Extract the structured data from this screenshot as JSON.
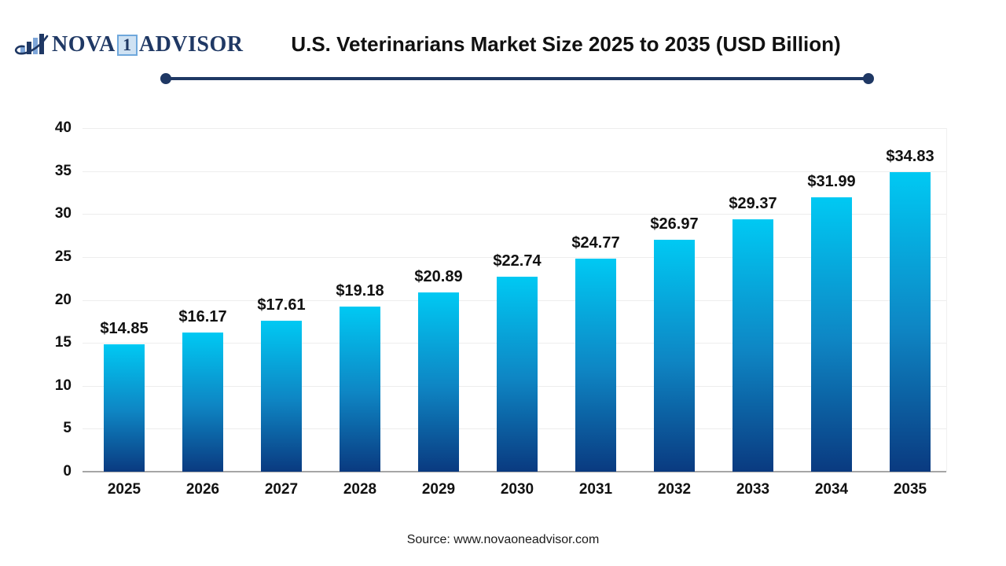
{
  "logo": {
    "icon": "bar-chart-swoosh-icon",
    "brand_prefix": "NOVA",
    "brand_badge": "1",
    "brand_suffix": "ADVISOR"
  },
  "header": {
    "title": "U.S. Veterinarians Market Size 2025 to 2035 (USD Billion)"
  },
  "footer": {
    "source": "Source: www.novaoneadvisor.com"
  },
  "colors": {
    "navy": "#1f3864",
    "grid": "#ededed",
    "axis": "#a6a6a6",
    "bar_top": "#00c9f3",
    "bar_mid": "#0e86c4",
    "bar_bottom": "#0a3a80",
    "badge_bg": "#cfe2f3",
    "badge_border": "#6fa8dc"
  },
  "chart_data": {
    "type": "bar",
    "title": "U.S. Veterinarians Market Size 2025 to 2035 (USD Billion)",
    "categories": [
      "2025",
      "2026",
      "2027",
      "2028",
      "2029",
      "2030",
      "2031",
      "2032",
      "2033",
      "2034",
      "2035"
    ],
    "values": [
      14.85,
      16.17,
      17.61,
      19.18,
      20.89,
      22.74,
      24.77,
      26.97,
      29.37,
      31.99,
      34.83
    ],
    "value_labels": [
      "$14.85",
      "$16.17",
      "$17.61",
      "$19.18",
      "$20.89",
      "$22.74",
      "$24.77",
      "$26.97",
      "$29.37",
      "$31.99",
      "$34.83"
    ],
    "xlabel": "",
    "ylabel": "",
    "ylim": [
      0,
      40
    ],
    "ytick_step": 5,
    "yticks": [
      0,
      5,
      10,
      15,
      20,
      25,
      30,
      35,
      40
    ],
    "grid": true,
    "legend": "none",
    "bar_color_gradient": [
      "#00c9f3",
      "#0a3a80"
    ]
  }
}
